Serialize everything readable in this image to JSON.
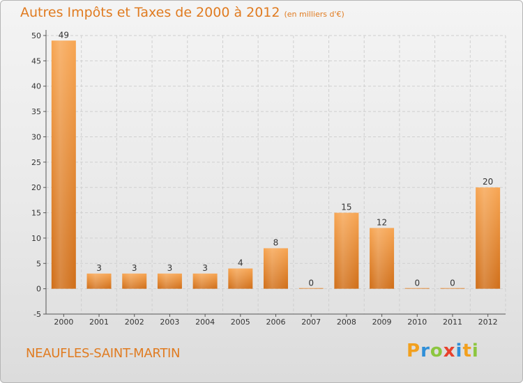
{
  "chart_data": {
    "type": "bar",
    "title": "Autres Impôts et Taxes de 2000 à 2012",
    "subtitle": "(en milliers d'€)",
    "categories": [
      "2000",
      "2001",
      "2002",
      "2003",
      "2004",
      "2005",
      "2006",
      "2007",
      "2008",
      "2009",
      "2010",
      "2011",
      "2012"
    ],
    "values": [
      49,
      3,
      3,
      3,
      3,
      4,
      8,
      0,
      15,
      12,
      0,
      0,
      20
    ],
    "ylim": [
      -5,
      50
    ],
    "yticks": [
      -5,
      0,
      5,
      10,
      15,
      20,
      25,
      30,
      35,
      40,
      45,
      50
    ],
    "grid": true,
    "bar_color_top": "#f7a552",
    "bar_color_bottom": "#d06e18"
  },
  "commune": "NEAUFLES-SAINT-MARTIN",
  "brand": {
    "letters": [
      "P",
      "r",
      "o",
      "x",
      "i",
      "t",
      "i"
    ],
    "colors": [
      "#f2a01e",
      "#2f8fd8",
      "#8cc63f",
      "#e8412c",
      "#2f8fd8",
      "#f2a01e",
      "#8cc63f"
    ]
  }
}
